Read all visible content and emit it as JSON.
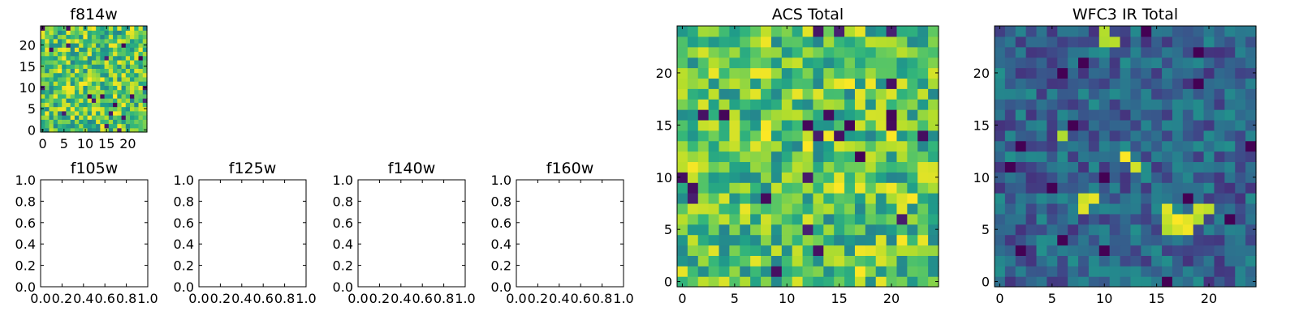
{
  "figure": {
    "background": "#ffffff",
    "colormap": "viridis"
  },
  "chart_data": [
    {
      "id": "f814w",
      "type": "heatmap",
      "title": "f814w",
      "grid_size": 25,
      "seed": 11,
      "mode": "bright",
      "xlim": [
        -0.5,
        24.5
      ],
      "ylim": [
        -0.5,
        24.5
      ],
      "xticks": [
        0,
        5,
        10,
        15,
        20
      ],
      "yticks": [
        0,
        5,
        10,
        15,
        20
      ],
      "xtick_labels": [
        "0",
        "5",
        "10",
        "15",
        "20"
      ],
      "ytick_labels": [
        "0",
        "5",
        "10",
        "15",
        "20"
      ]
    },
    {
      "id": "f105w",
      "type": "empty",
      "title": "f105w",
      "xlim": [
        0,
        1
      ],
      "ylim": [
        0,
        1
      ],
      "xticks": [
        0,
        0.2,
        0.4,
        0.6,
        0.8,
        1.0
      ],
      "yticks": [
        0,
        0.2,
        0.4,
        0.6,
        0.8,
        1.0
      ],
      "xtick_labels": [
        "0.0",
        "0.2",
        "0.4",
        "0.6",
        "0.8",
        "1.0"
      ],
      "ytick_labels": [
        "0.0",
        "0.2",
        "0.4",
        "0.6",
        "0.8",
        "1.0"
      ]
    },
    {
      "id": "f125w",
      "type": "empty",
      "title": "f125w",
      "xlim": [
        0,
        1
      ],
      "ylim": [
        0,
        1
      ],
      "xticks": [
        0,
        0.2,
        0.4,
        0.6,
        0.8,
        1.0
      ],
      "yticks": [
        0,
        0.2,
        0.4,
        0.6,
        0.8,
        1.0
      ],
      "xtick_labels": [
        "0.0",
        "0.2",
        "0.4",
        "0.6",
        "0.8",
        "1.0"
      ],
      "ytick_labels": [
        "0.0",
        "0.2",
        "0.4",
        "0.6",
        "0.8",
        "1.0"
      ]
    },
    {
      "id": "f140w",
      "type": "empty",
      "title": "f140w",
      "xlim": [
        0,
        1
      ],
      "ylim": [
        0,
        1
      ],
      "xticks": [
        0,
        0.2,
        0.4,
        0.6,
        0.8,
        1.0
      ],
      "yticks": [
        0,
        0.2,
        0.4,
        0.6,
        0.8,
        1.0
      ],
      "xtick_labels": [
        "0.0",
        "0.2",
        "0.4",
        "0.6",
        "0.8",
        "1.0"
      ],
      "ytick_labels": [
        "0.0",
        "0.2",
        "0.4",
        "0.6",
        "0.8",
        "1.0"
      ]
    },
    {
      "id": "f160w",
      "type": "empty",
      "title": "f160w",
      "xlim": [
        0,
        1
      ],
      "ylim": [
        0,
        1
      ],
      "xticks": [
        0,
        0.2,
        0.4,
        0.6,
        0.8,
        1.0
      ],
      "yticks": [
        0,
        0.2,
        0.4,
        0.6,
        0.8,
        1.0
      ],
      "xtick_labels": [
        "0.0",
        "0.2",
        "0.4",
        "0.6",
        "0.8",
        "1.0"
      ],
      "ytick_labels": [
        "0.0",
        "0.2",
        "0.4",
        "0.6",
        "0.8",
        "1.0"
      ]
    },
    {
      "id": "acs-total",
      "type": "heatmap",
      "title": "ACS Total",
      "grid_size": 25,
      "seed": 23,
      "mode": "bright",
      "xlim": [
        -0.5,
        24.5
      ],
      "ylim": [
        -0.5,
        24.5
      ],
      "xticks": [
        0,
        5,
        10,
        15,
        20
      ],
      "yticks": [
        0,
        5,
        10,
        15,
        20
      ],
      "xtick_labels": [
        "0",
        "5",
        "10",
        "15",
        "20"
      ],
      "ytick_labels": [
        "0",
        "5",
        "10",
        "15",
        "20"
      ]
    },
    {
      "id": "wfc3-ir-total",
      "type": "heatmap",
      "title": "WFC3 IR Total",
      "grid_size": 25,
      "seed": 37,
      "mode": "dark",
      "xlim": [
        -0.5,
        24.5
      ],
      "ylim": [
        -0.5,
        24.5
      ],
      "xticks": [
        0,
        5,
        10,
        15,
        20
      ],
      "yticks": [
        0,
        5,
        10,
        15,
        20
      ],
      "xtick_labels": [
        "0",
        "5",
        "10",
        "15",
        "20"
      ],
      "ytick_labels": [
        "0",
        "5",
        "10",
        "15",
        "20"
      ],
      "bright_cells": [
        [
          10,
          23
        ],
        [
          11,
          23
        ],
        [
          10,
          24
        ],
        [
          16,
          5
        ],
        [
          16,
          6
        ],
        [
          16,
          7
        ],
        [
          17,
          5
        ],
        [
          17,
          6
        ],
        [
          18,
          5
        ],
        [
          18,
          6
        ],
        [
          19,
          6
        ],
        [
          19,
          7
        ],
        [
          20,
          7
        ],
        [
          8,
          8
        ],
        [
          9,
          8
        ],
        [
          8,
          7
        ],
        [
          12,
          12
        ],
        [
          13,
          11
        ],
        [
          6,
          14
        ]
      ]
    }
  ]
}
